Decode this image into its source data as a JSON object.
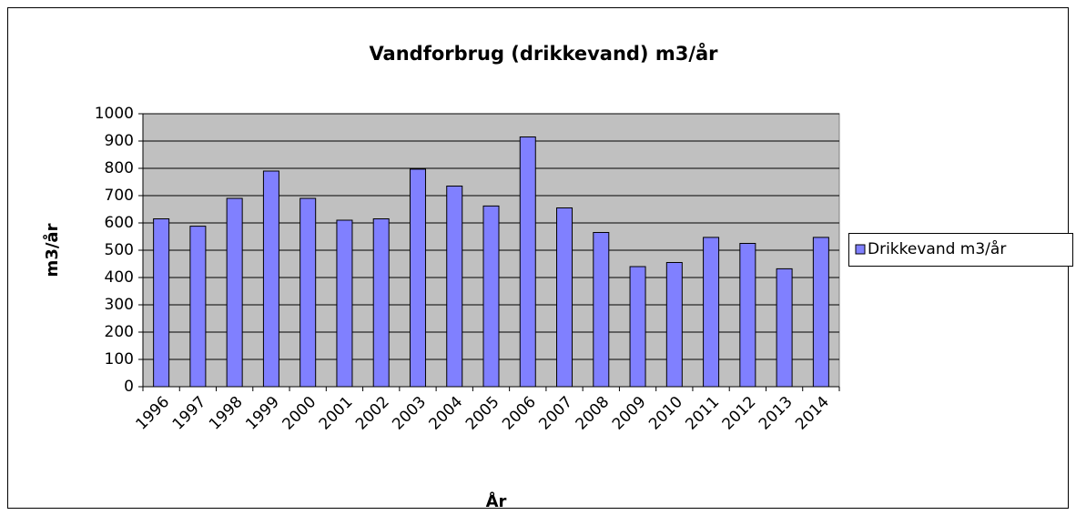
{
  "chart_data": {
    "type": "bar",
    "title": "Vandforbrug (drikkevand) m3/år",
    "x_label": "År",
    "y_label": "m3/år",
    "categories": [
      "1996",
      "1997",
      "1998",
      "1999",
      "2000",
      "2001",
      "2002",
      "2003",
      "2004",
      "2005",
      "2006",
      "2007",
      "2008",
      "2009",
      "2010",
      "2011",
      "2012",
      "2013",
      "2014"
    ],
    "series": [
      {
        "name": "Drikkevand m3/år",
        "color": "#8080ff",
        "values": [
          615,
          588,
          690,
          790,
          690,
          610,
          615,
          797,
          735,
          662,
          915,
          655,
          565,
          440,
          455,
          547,
          525,
          432,
          547
        ]
      }
    ],
    "ylim": [
      0,
      1000
    ],
    "yticks": [
      0,
      100,
      200,
      300,
      400,
      500,
      600,
      700,
      800,
      900,
      1000
    ],
    "grid": true,
    "legend": "right",
    "plot_background": "#c0c0c0"
  }
}
